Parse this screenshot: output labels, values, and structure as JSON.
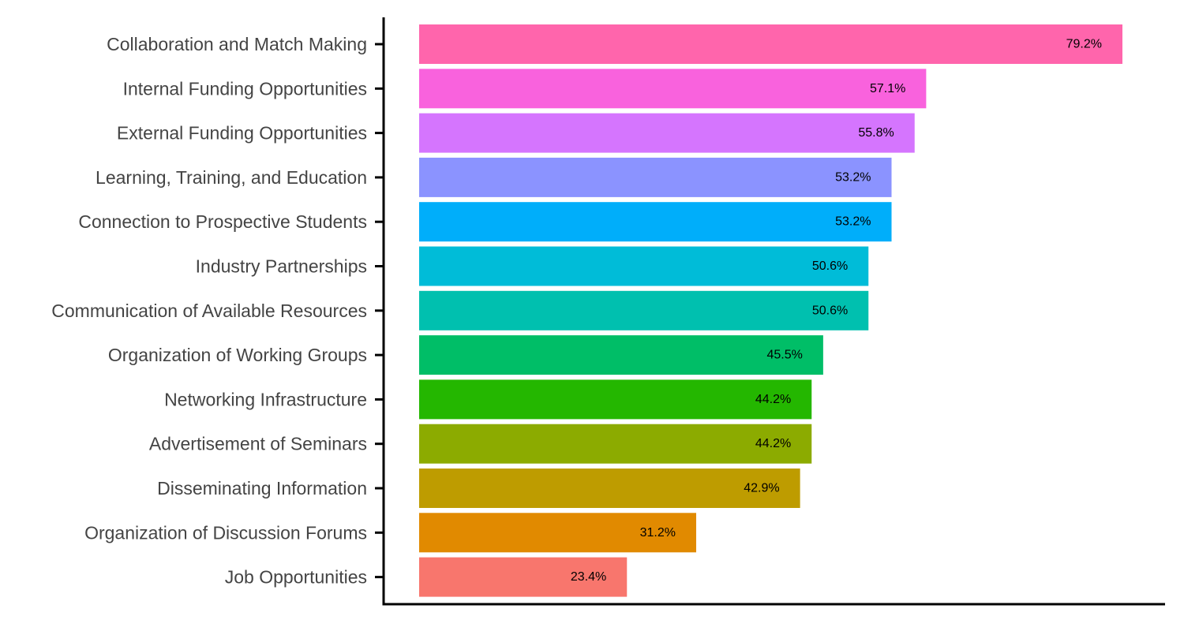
{
  "chart_data": {
    "type": "bar",
    "orientation": "horizontal",
    "title": "",
    "xlabel": "",
    "ylabel": "",
    "xlim": [
      0,
      82
    ],
    "grid": false,
    "legend": "none",
    "categories": [
      "Collaboration and Match Making",
      "Internal Funding Opportunities",
      "External Funding Opportunities",
      "Learning, Training, and Education",
      "Connection to Prospective Students",
      "Industry Partnerships",
      "Communication of Available Resources",
      "Organization of Working Groups",
      "Networking Infrastructure",
      "Advertisement of Seminars",
      "Disseminating Information",
      "Organization of Discussion Forums",
      "Job Opportunities"
    ],
    "values": [
      79.2,
      57.1,
      55.8,
      53.2,
      53.2,
      50.6,
      50.6,
      45.5,
      44.2,
      44.2,
      42.9,
      31.2,
      23.4
    ],
    "value_labels": [
      "79.2%",
      "57.1%",
      "55.8%",
      "53.2%",
      "53.2%",
      "50.6%",
      "50.6%",
      "45.5%",
      "44.2%",
      "44.2%",
      "42.9%",
      "31.2%",
      "23.4%"
    ],
    "colors": [
      "#FF65AC",
      "#F962DD",
      "#D575FE",
      "#8B93FF",
      "#00AEFA",
      "#00BCD8",
      "#00C0AF",
      "#00BE67",
      "#24B700",
      "#8CAB00",
      "#BE9C00",
      "#E18A00",
      "#F8766D"
    ]
  }
}
